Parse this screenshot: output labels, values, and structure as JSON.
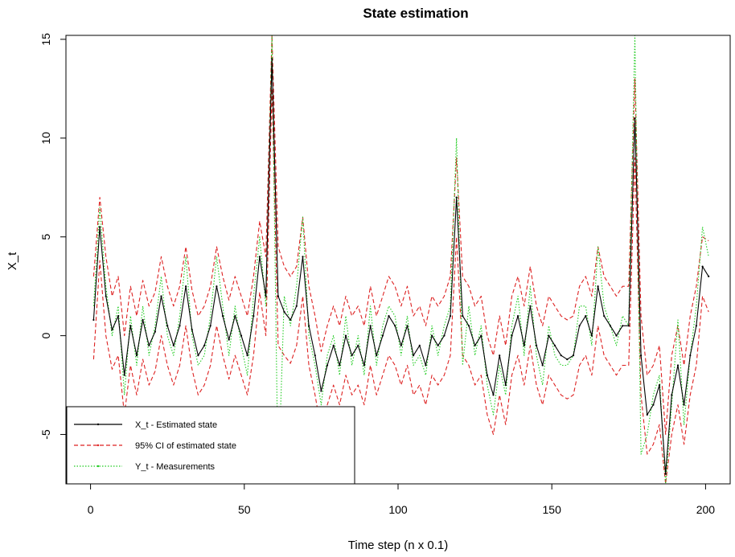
{
  "chart_data": {
    "type": "line",
    "title": "State estimation",
    "xlabel": "Time step (n x 0.1)",
    "ylabel": "X_t",
    "xlim": [
      -8,
      208
    ],
    "ylim": [
      -7.5,
      15.2
    ],
    "xticks": [
      0,
      50,
      100,
      150,
      200
    ],
    "yticks": [
      -5,
      0,
      5,
      10,
      15
    ],
    "xtick_labels": [
      "0",
      "50",
      "100",
      "150",
      "200"
    ],
    "ytick_labels": [
      "-5",
      "0",
      "5",
      "10",
      "15"
    ],
    "legend_position": "bottom-left",
    "x": [
      1,
      3,
      5,
      7,
      9,
      11,
      13,
      15,
      17,
      19,
      21,
      23,
      25,
      27,
      29,
      31,
      33,
      35,
      37,
      39,
      41,
      43,
      45,
      47,
      49,
      51,
      53,
      55,
      57,
      59,
      61,
      63,
      65,
      67,
      69,
      71,
      73,
      75,
      77,
      79,
      81,
      83,
      85,
      87,
      89,
      91,
      93,
      95,
      97,
      99,
      101,
      103,
      105,
      107,
      109,
      111,
      113,
      115,
      117,
      119,
      121,
      123,
      125,
      127,
      129,
      131,
      133,
      135,
      137,
      139,
      141,
      143,
      145,
      147,
      149,
      151,
      153,
      155,
      157,
      159,
      161,
      163,
      165,
      167,
      169,
      171,
      173,
      175,
      177,
      179,
      181,
      183,
      185,
      187,
      189,
      191,
      193,
      195,
      197,
      199,
      201
    ],
    "series": [
      {
        "name": "X_t - Estimated state",
        "color": "#000000",
        "dash": "solid",
        "values": [
          0.8,
          5.5,
          2.0,
          0.3,
          1.0,
          -2.0,
          0.5,
          -1.0,
          0.8,
          -0.5,
          0.2,
          2.0,
          0.5,
          -0.5,
          0.5,
          2.5,
          0.3,
          -1.0,
          -0.5,
          0.5,
          2.5,
          1.0,
          -0.2,
          1.0,
          0.0,
          -1.0,
          1.0,
          4.0,
          2.0,
          14.0,
          2.0,
          1.2,
          0.8,
          1.5,
          4.0,
          0.5,
          -1.0,
          -2.8,
          -1.5,
          -0.5,
          -1.5,
          0.0,
          -1.0,
          -0.5,
          -1.5,
          0.5,
          -1.0,
          0.0,
          1.0,
          0.5,
          -0.5,
          0.5,
          -1.0,
          -0.5,
          -1.5,
          0.0,
          -0.5,
          0.0,
          1.0,
          7.0,
          1.0,
          0.5,
          -0.5,
          0.0,
          -2.0,
          -3.0,
          -1.0,
          -2.5,
          0.0,
          1.0,
          -0.5,
          1.5,
          -0.5,
          -1.5,
          0.0,
          -0.5,
          -1.0,
          -1.2,
          -1.0,
          0.5,
          1.0,
          0.0,
          2.5,
          1.0,
          0.5,
          0.0,
          0.5,
          0.5,
          11.0,
          -1.0,
          -4.0,
          -3.5,
          -2.5,
          -7.0,
          -3.0,
          -1.5,
          -3.5,
          -1.0,
          0.5,
          3.5,
          3.0
        ]
      },
      {
        "name": "95% CI of estimated state",
        "color": "#dd2222",
        "dash": "dashed",
        "upper": [
          3.0,
          7.0,
          4.0,
          2.0,
          3.0,
          0.0,
          2.5,
          1.0,
          2.8,
          1.5,
          2.2,
          4.0,
          2.5,
          1.5,
          2.5,
          4.5,
          2.3,
          1.0,
          1.5,
          2.5,
          4.5,
          3.0,
          1.8,
          3.0,
          2.0,
          1.0,
          3.0,
          5.8,
          4.0,
          15.2,
          4.5,
          3.5,
          3.0,
          3.5,
          6.0,
          2.5,
          1.0,
          -0.8,
          0.5,
          1.5,
          0.5,
          2.0,
          1.0,
          1.5,
          0.5,
          2.5,
          1.0,
          2.0,
          3.0,
          2.5,
          1.5,
          2.5,
          1.0,
          1.5,
          0.5,
          2.0,
          1.5,
          2.0,
          3.0,
          9.0,
          3.0,
          2.5,
          1.5,
          2.0,
          0.0,
          -1.0,
          1.0,
          -0.5,
          2.0,
          3.0,
          1.5,
          3.5,
          1.5,
          0.5,
          2.0,
          1.5,
          1.0,
          0.8,
          1.0,
          2.5,
          3.0,
          2.0,
          4.5,
          3.0,
          2.5,
          2.0,
          2.5,
          2.5,
          13.0,
          1.0,
          -2.0,
          -1.5,
          -0.5,
          -5.0,
          -1.0,
          0.5,
          -1.5,
          1.0,
          2.5,
          5.0,
          4.8
        ],
        "lower": [
          -1.2,
          3.8,
          0.0,
          -1.7,
          -1.0,
          -4.0,
          -1.5,
          -3.0,
          -1.2,
          -2.5,
          -1.8,
          0.0,
          -1.5,
          -2.5,
          -1.5,
          0.5,
          -1.7,
          -3.0,
          -2.5,
          -1.5,
          0.5,
          -1.0,
          -2.2,
          -1.0,
          -2.0,
          -3.0,
          -1.0,
          2.2,
          0.0,
          12.5,
          -0.5,
          -1.0,
          -1.4,
          -0.5,
          2.0,
          -1.5,
          -3.0,
          -4.8,
          -3.5,
          -2.5,
          -3.5,
          -2.0,
          -3.0,
          -2.5,
          -3.5,
          -1.5,
          -3.0,
          -2.0,
          -1.0,
          -1.5,
          -2.5,
          -1.5,
          -3.0,
          -2.5,
          -3.5,
          -2.0,
          -2.5,
          -2.0,
          -1.0,
          5.0,
          -1.0,
          -1.5,
          -2.5,
          -2.0,
          -4.0,
          -5.0,
          -3.0,
          -4.5,
          -2.0,
          -1.0,
          -2.5,
          -0.5,
          -2.5,
          -3.5,
          -2.0,
          -2.5,
          -3.0,
          -3.2,
          -3.0,
          -1.5,
          -1.0,
          -2.0,
          0.5,
          -1.0,
          -1.5,
          -2.0,
          -1.5,
          -1.5,
          9.0,
          -3.0,
          -6.0,
          -5.5,
          -4.5,
          -7.5,
          -5.0,
          -3.5,
          -5.5,
          -3.0,
          -1.5,
          2.0,
          1.2
        ]
      },
      {
        "name": "Y_t - Measurements",
        "color": "#22cc22",
        "dash": "dotted",
        "values": [
          1.5,
          6.5,
          2.5,
          0.0,
          1.5,
          -3.0,
          1.0,
          -1.5,
          1.5,
          -1.0,
          0.5,
          3.0,
          0.0,
          -1.0,
          1.0,
          4.0,
          0.0,
          -1.5,
          -1.0,
          1.0,
          4.0,
          1.5,
          -1.0,
          1.5,
          -0.5,
          -2.0,
          2.0,
          5.0,
          1.5,
          15.2,
          -7.5,
          2.0,
          0.5,
          2.5,
          6.0,
          0.0,
          -1.5,
          -3.5,
          -1.0,
          0.0,
          -2.0,
          1.0,
          -1.5,
          0.0,
          -2.0,
          1.5,
          -1.5,
          0.5,
          1.5,
          1.0,
          -1.0,
          1.0,
          -1.5,
          -1.0,
          -2.0,
          0.5,
          -1.0,
          0.5,
          1.5,
          10.0,
          -1.5,
          1.5,
          -1.0,
          0.5,
          -2.5,
          -4.0,
          -1.5,
          -3.0,
          0.5,
          2.0,
          -1.0,
          2.5,
          -1.0,
          -2.5,
          0.5,
          -1.0,
          -1.5,
          -1.5,
          -1.0,
          1.5,
          1.5,
          -0.5,
          4.5,
          1.5,
          0.5,
          -0.5,
          1.0,
          0.5,
          15.2,
          -6.0,
          -5.0,
          -3.0,
          -2.0,
          -7.5,
          -3.5,
          0.8,
          -4.5,
          -1.0,
          1.5,
          5.5,
          4.0
        ]
      }
    ]
  }
}
